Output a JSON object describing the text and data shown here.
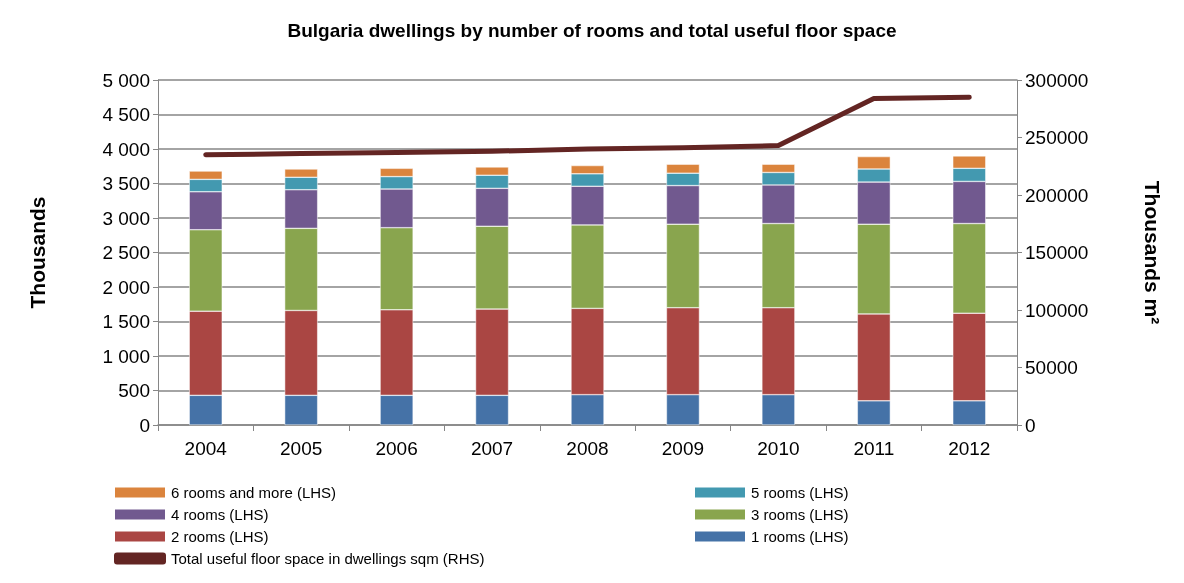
{
  "chart_data": {
    "type": "bar",
    "title": "Bulgaria dwellings by number of rooms and total useful floor space",
    "ylabel": "Thousands",
    "y2label": "Thousands m²",
    "categories": [
      "2004",
      "2005",
      "2006",
      "2007",
      "2008",
      "2009",
      "2010",
      "2011",
      "2012"
    ],
    "stacked": true,
    "grid": "y",
    "legend": "bottom",
    "ylim": [
      0,
      5000
    ],
    "yticks": [
      0,
      500,
      {
        "value": 1000,
        "label": "1 000"
      },
      {
        "value": 1500,
        "label": "1 500"
      },
      {
        "value": 2000,
        "label": "2 000"
      },
      {
        "value": 2500,
        "label": "2 500"
      },
      {
        "value": 3000,
        "label": "3 000"
      },
      {
        "value": 3500,
        "label": "3 500"
      },
      {
        "value": 4000,
        "label": "4 000"
      },
      {
        "value": 4500,
        "label": "4 500"
      },
      {
        "value": 5000,
        "label": "5 000"
      }
    ],
    "y2lim": [
      0,
      300000
    ],
    "y2ticks": [
      0,
      50000,
      100000,
      150000,
      200000,
      250000,
      300000
    ],
    "series": [
      {
        "name": "1 rooms (LHS)",
        "color": "#4572a7",
        "values": [
          430,
          430,
          430,
          430,
          440,
          440,
          440,
          350,
          350
        ]
      },
      {
        "name": "2 rooms (LHS)",
        "color": "#aa4643",
        "values": [
          1220,
          1230,
          1240,
          1250,
          1250,
          1260,
          1260,
          1260,
          1270
        ]
      },
      {
        "name": "3 rooms (LHS)",
        "color": "#89a54e",
        "values": [
          1180,
          1190,
          1190,
          1200,
          1210,
          1210,
          1220,
          1300,
          1300
        ]
      },
      {
        "name": "4 rooms (LHS)",
        "color": "#71598f",
        "values": [
          550,
          560,
          560,
          550,
          560,
          560,
          560,
          610,
          610
        ]
      },
      {
        "name": "5 rooms (LHS)",
        "color": "#4399b0",
        "values": [
          180,
          180,
          180,
          190,
          180,
          180,
          180,
          190,
          190
        ]
      },
      {
        "name": "6 rooms and more (LHS)",
        "color": "#db843d",
        "values": [
          120,
          120,
          120,
          120,
          120,
          130,
          120,
          180,
          180
        ]
      },
      {
        "name": "Total useful floor space in dwellings sqm (RHS)",
        "type": "line",
        "axis": "y2",
        "color": "#632523",
        "marker": "none",
        "line_style": "solid",
        "values": [
          235000,
          236000,
          237000,
          238000,
          240000,
          241000,
          243000,
          284000,
          285000
        ]
      }
    ]
  }
}
